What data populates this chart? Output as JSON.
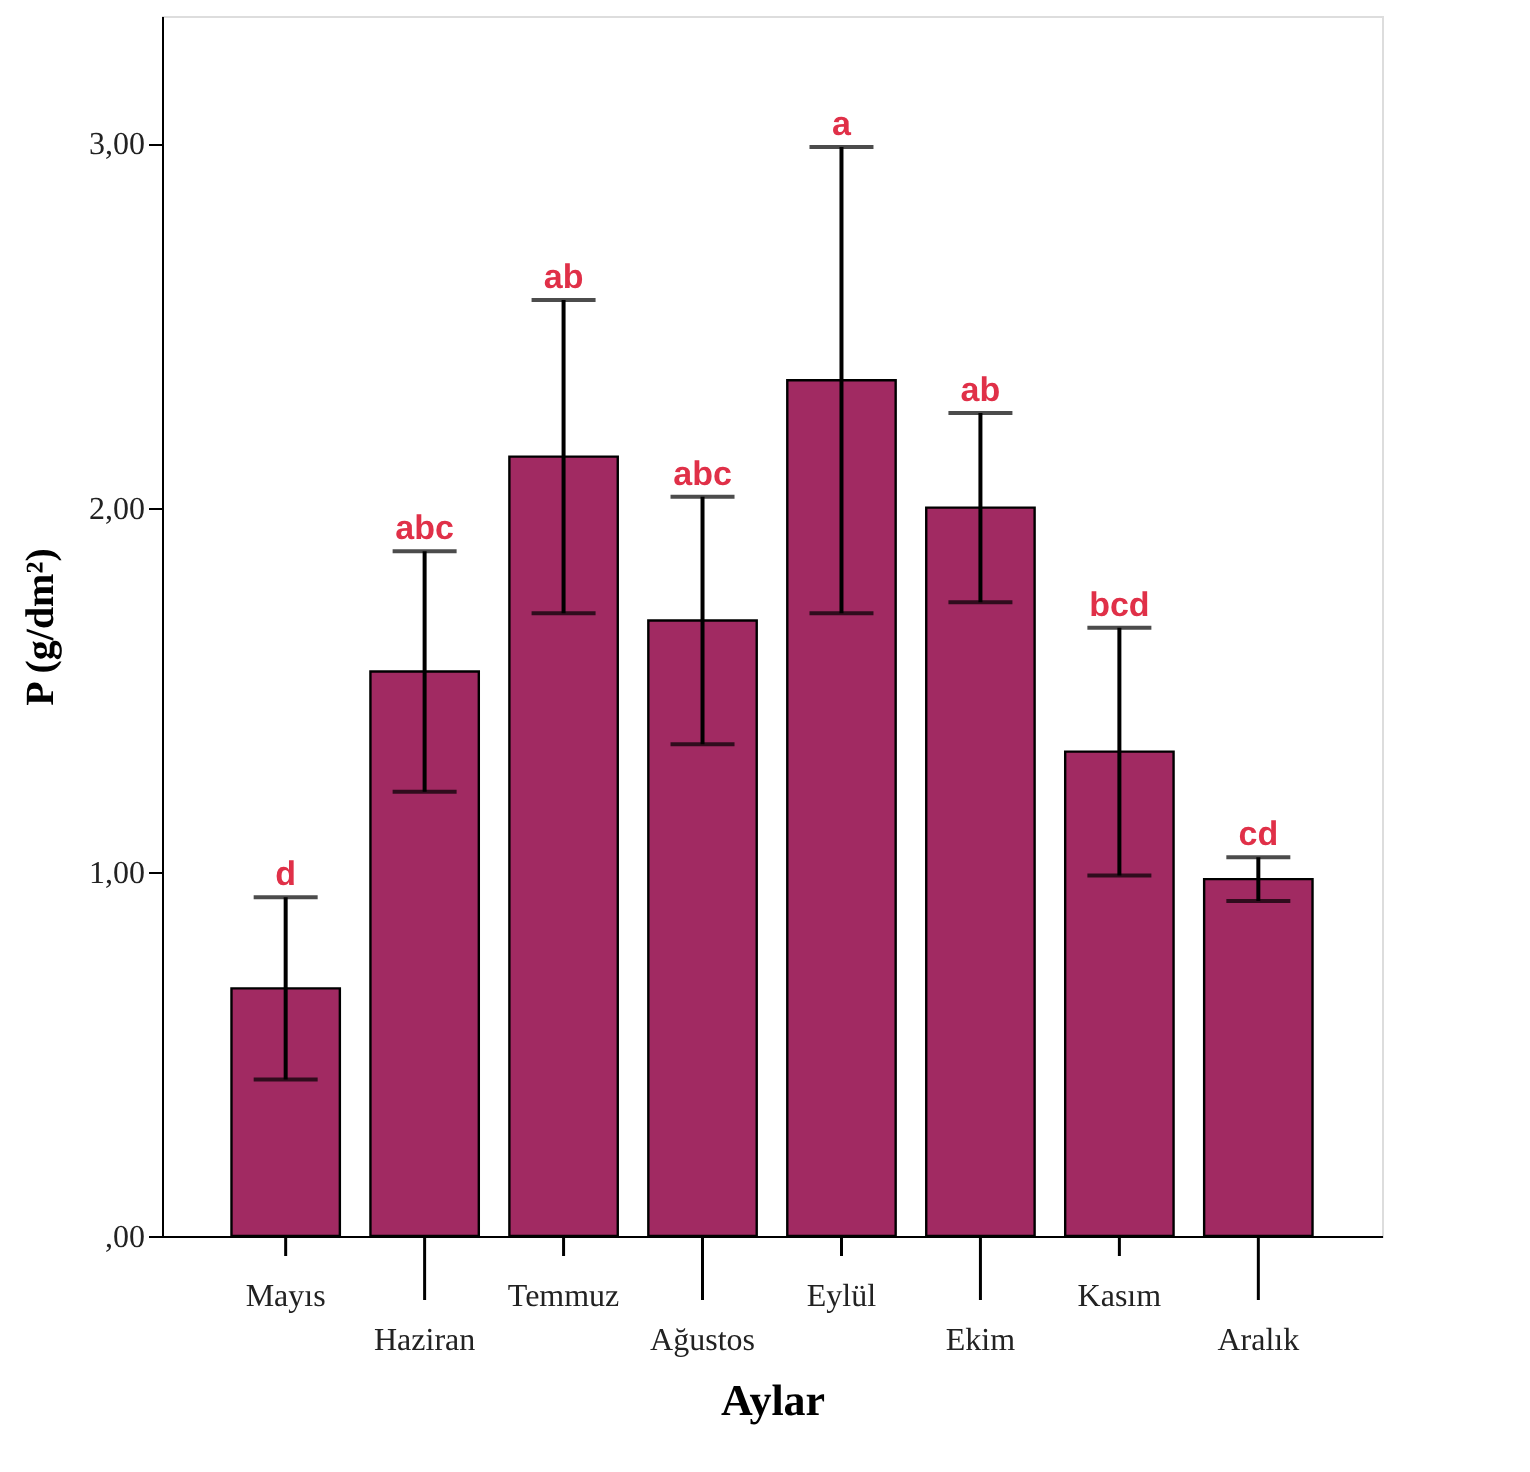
{
  "chart_data": {
    "type": "bar",
    "xlabel": "Aylar",
    "ylabel": "P (g/dm²)",
    "categories": [
      "Mayıs",
      "Haziran",
      "Temmuz",
      "Ağustos",
      "Eylül",
      "Ekim",
      "Kasım",
      "Aralık"
    ],
    "values": [
      0.68,
      1.55,
      2.14,
      1.69,
      2.35,
      2.0,
      1.33,
      0.98
    ],
    "errors": [
      0.25,
      0.33,
      0.43,
      0.34,
      0.64,
      0.26,
      0.34,
      0.06
    ],
    "color": "#a12a62",
    "ylim": [
      0,
      3.35
    ],
    "yticks": [
      {
        "value": 0,
        "label": ",00"
      },
      {
        "value": 1,
        "label": "1,00"
      },
      {
        "value": 2,
        "label": "2,00"
      },
      {
        "value": 3,
        "label": "3,00"
      }
    ],
    "grid": false,
    "annotations": [
      {
        "text": "d",
        "x": "Mayıs",
        "y": 0.93
      },
      {
        "text": "abc",
        "x": "Haziran",
        "y": 1.88
      },
      {
        "text": "ab",
        "x": "Temmuz",
        "y": 2.57
      },
      {
        "text": "abc",
        "x": "Ağustos",
        "y": 2.03
      },
      {
        "text": "a",
        "x": "Eylül",
        "y": 2.99
      },
      {
        "text": "ab",
        "x": "Ekim",
        "y": 2.26
      },
      {
        "text": "bcd",
        "x": "Kasım",
        "y": 1.67
      },
      {
        "text": "cd",
        "x": "Aralık",
        "y": 1.04
      }
    ]
  }
}
